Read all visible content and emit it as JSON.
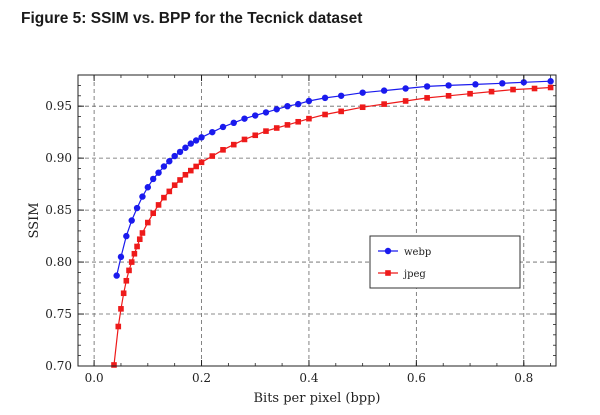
{
  "figure_title": "Figure 5: SSIM vs. BPP for the Tecnick dataset",
  "chart_data": {
    "type": "line",
    "xlabel": "Bits per pixel (bpp)",
    "ylabel": "SSIM",
    "xlim": [
      -0.03,
      0.86
    ],
    "ylim": [
      0.7,
      0.98
    ],
    "x_ticks": [
      "0.0",
      "0.2",
      "0.4",
      "0.6",
      "0.8"
    ],
    "x_tick_values": [
      0.0,
      0.2,
      0.4,
      0.6,
      0.8
    ],
    "y_ticks": [
      "0.70",
      "0.75",
      "0.80",
      "0.85",
      "0.90",
      "0.95"
    ],
    "y_tick_values": [
      0.7,
      0.75,
      0.8,
      0.85,
      0.9,
      0.95
    ],
    "grid": "dashed",
    "legend_position": "right-center",
    "series": [
      {
        "name": "webp",
        "color": "#1a1aee",
        "marker": "circle",
        "x": [
          0.042,
          0.05,
          0.06,
          0.07,
          0.08,
          0.09,
          0.1,
          0.11,
          0.12,
          0.13,
          0.14,
          0.15,
          0.16,
          0.17,
          0.18,
          0.19,
          0.2,
          0.22,
          0.24,
          0.26,
          0.28,
          0.3,
          0.32,
          0.34,
          0.36,
          0.38,
          0.4,
          0.43,
          0.46,
          0.5,
          0.54,
          0.58,
          0.62,
          0.66,
          0.71,
          0.76,
          0.8,
          0.85
        ],
        "y": [
          0.787,
          0.805,
          0.825,
          0.84,
          0.852,
          0.863,
          0.872,
          0.88,
          0.886,
          0.892,
          0.897,
          0.902,
          0.906,
          0.91,
          0.914,
          0.917,
          0.92,
          0.925,
          0.93,
          0.934,
          0.938,
          0.941,
          0.944,
          0.947,
          0.95,
          0.952,
          0.955,
          0.958,
          0.96,
          0.963,
          0.965,
          0.967,
          0.969,
          0.97,
          0.971,
          0.972,
          0.973,
          0.974
        ]
      },
      {
        "name": "jpeg",
        "color": "#ee1a1a",
        "marker": "square",
        "x": [
          0.037,
          0.045,
          0.05,
          0.055,
          0.06,
          0.065,
          0.07,
          0.075,
          0.08,
          0.085,
          0.09,
          0.1,
          0.11,
          0.12,
          0.13,
          0.14,
          0.15,
          0.16,
          0.17,
          0.18,
          0.19,
          0.2,
          0.22,
          0.24,
          0.26,
          0.28,
          0.3,
          0.32,
          0.34,
          0.36,
          0.38,
          0.4,
          0.43,
          0.46,
          0.5,
          0.54,
          0.58,
          0.62,
          0.66,
          0.7,
          0.74,
          0.78,
          0.82,
          0.85
        ],
        "y": [
          0.701,
          0.738,
          0.755,
          0.77,
          0.782,
          0.792,
          0.8,
          0.808,
          0.815,
          0.822,
          0.828,
          0.838,
          0.847,
          0.855,
          0.862,
          0.868,
          0.874,
          0.879,
          0.884,
          0.888,
          0.892,
          0.896,
          0.902,
          0.908,
          0.913,
          0.918,
          0.922,
          0.926,
          0.929,
          0.932,
          0.935,
          0.938,
          0.942,
          0.945,
          0.949,
          0.952,
          0.955,
          0.958,
          0.96,
          0.962,
          0.964,
          0.966,
          0.967,
          0.968
        ]
      }
    ]
  }
}
